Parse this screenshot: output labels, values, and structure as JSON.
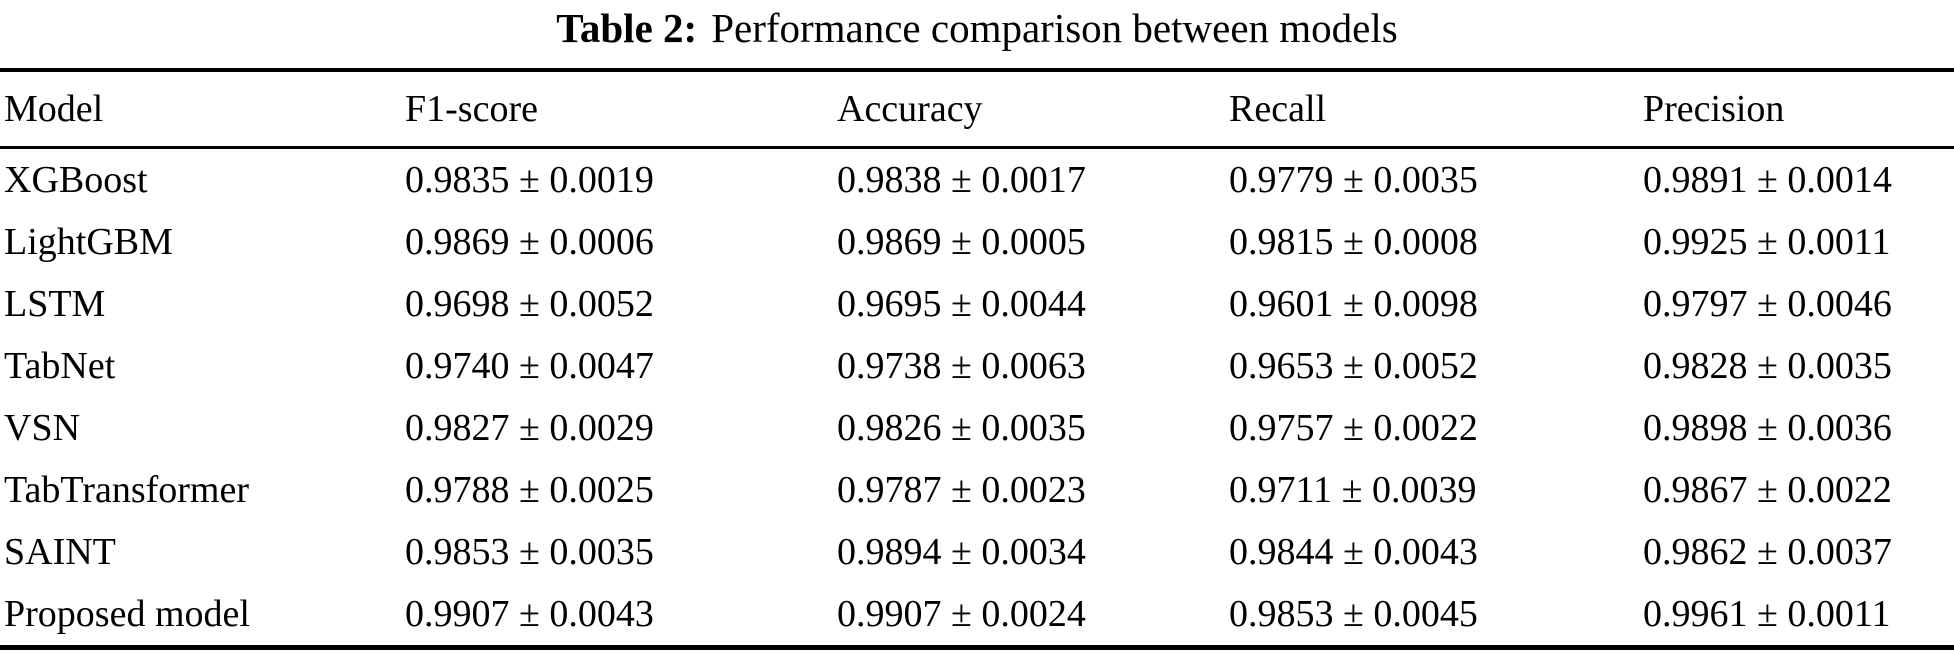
{
  "colors": {
    "text": "#000000",
    "background": "#ffffff",
    "rule": "#000000"
  },
  "caption": {
    "label": "Table 2:",
    "text": "Performance comparison between models"
  },
  "table": {
    "columns": [
      "Model",
      "F1-score",
      "Accuracy",
      "Recall",
      "Precision"
    ],
    "rows": [
      {
        "model": "XGBoost",
        "f1": "0.9835 ± 0.0019",
        "accuracy": "0.9838 ± 0.0017",
        "recall": "0.9779 ± 0.0035",
        "precision": "0.9891 ± 0.0014"
      },
      {
        "model": "LightGBM",
        "f1": "0.9869 ± 0.0006",
        "accuracy": "0.9869 ± 0.0005",
        "recall": "0.9815 ± 0.0008",
        "precision": "0.9925 ± 0.0011"
      },
      {
        "model": "LSTM",
        "f1": "0.9698 ± 0.0052",
        "accuracy": "0.9695 ± 0.0044",
        "recall": "0.9601 ± 0.0098",
        "precision": "0.9797 ± 0.0046"
      },
      {
        "model": "TabNet",
        "f1": "0.9740 ± 0.0047",
        "accuracy": "0.9738 ± 0.0063",
        "recall": "0.9653 ± 0.0052",
        "precision": "0.9828 ± 0.0035"
      },
      {
        "model": "VSN",
        "f1": "0.9827 ± 0.0029",
        "accuracy": "0.9826 ± 0.0035",
        "recall": "0.9757 ± 0.0022",
        "precision": "0.9898 ± 0.0036"
      },
      {
        "model": "TabTransformer",
        "f1": "0.9788 ± 0.0025",
        "accuracy": "0.9787 ± 0.0023",
        "recall": "0.9711 ± 0.0039",
        "precision": "0.9867 ± 0.0022"
      },
      {
        "model": "SAINT",
        "f1": "0.9853 ± 0.0035",
        "accuracy": "0.9894 ± 0.0034",
        "recall": "0.9844 ± 0.0043",
        "precision": "0.9862 ± 0.0037"
      },
      {
        "model": "Proposed model",
        "f1": "0.9907 ± 0.0043",
        "accuracy": "0.9907 ± 0.0024",
        "recall": "0.9853 ± 0.0045",
        "precision": "0.9961 ± 0.0011"
      }
    ]
  }
}
